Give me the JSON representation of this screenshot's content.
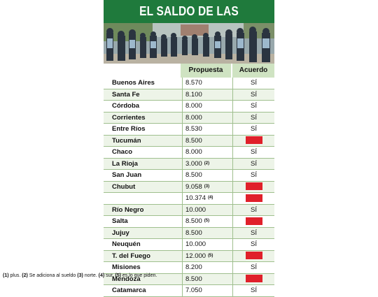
{
  "title": "EL SALDO DE LAS PROTESTAS",
  "columns": {
    "propuesta": "Propuesta",
    "acuerdo": "Acuerdo"
  },
  "rows": [
    {
      "province": "Buenos Aires",
      "value": "8.570",
      "note": "",
      "agreement": "SÍ"
    },
    {
      "province": "Santa Fe",
      "value": "8.100",
      "note": "",
      "agreement": "SÍ"
    },
    {
      "province": "Córdoba",
      "value": "8.000",
      "note": "",
      "agreement": "SÍ"
    },
    {
      "province": "Corrientes",
      "value": "8.000",
      "note": "",
      "agreement": "SÍ"
    },
    {
      "province": "Entre Ríos",
      "value": "8.530",
      "note": "",
      "agreement": "SÍ"
    },
    {
      "province": "Tucumán",
      "value": "8.500",
      "note": "",
      "agreement": ""
    },
    {
      "province": "Chaco",
      "value": "8.000",
      "note": "",
      "agreement": "SÍ"
    },
    {
      "province": "La Rioja",
      "value": "3.000",
      "note": "(2)",
      "agreement": "SÍ"
    },
    {
      "province": "San Juan",
      "value": "8.500",
      "note": "",
      "agreement": "SÍ"
    },
    {
      "province": "Chubut",
      "value": "9.058",
      "note": "(3)",
      "agreement": ""
    },
    {
      "province": "",
      "value": "10.374",
      "note": "(4)",
      "agreement": ""
    },
    {
      "province": "Río Negro",
      "value": "10.000",
      "note": "",
      "agreement": "SÍ"
    },
    {
      "province": "Salta",
      "value": "8.500",
      "note": "(5)",
      "agreement": ""
    },
    {
      "province": "Jujuy",
      "value": "8.500",
      "note": "",
      "agreement": "SÍ"
    },
    {
      "province": "Neuquén",
      "value": "10.000",
      "note": "",
      "agreement": "SÍ"
    },
    {
      "province": "T. del Fuego",
      "value": "12.000",
      "note": "(5)",
      "agreement": ""
    },
    {
      "province": "Misiones",
      "value": "8.200",
      "note": "",
      "agreement": "SÍ"
    },
    {
      "province": "Mendoza",
      "value": "8.500",
      "note": "",
      "agreement": ""
    },
    {
      "province": "Catamarca",
      "value": "7.050",
      "note": "",
      "agreement": "SÍ"
    }
  ],
  "footnote": {
    "n1": "(1)",
    "t1": " plus. ",
    "n2": "(2)",
    "t2": " Se adiciona al sueldo ",
    "n3": "(3)",
    "t3": " norte. ",
    "n4": "(4)",
    "t4": " sur. ",
    "n5": "(5)",
    "t5": " es lo que piden."
  },
  "colors": {
    "title_bg": "#1f7a3c",
    "header_bg": "#cfe3c2",
    "no_agreement": "#e0202a",
    "row_line": "#9fbf8e"
  }
}
